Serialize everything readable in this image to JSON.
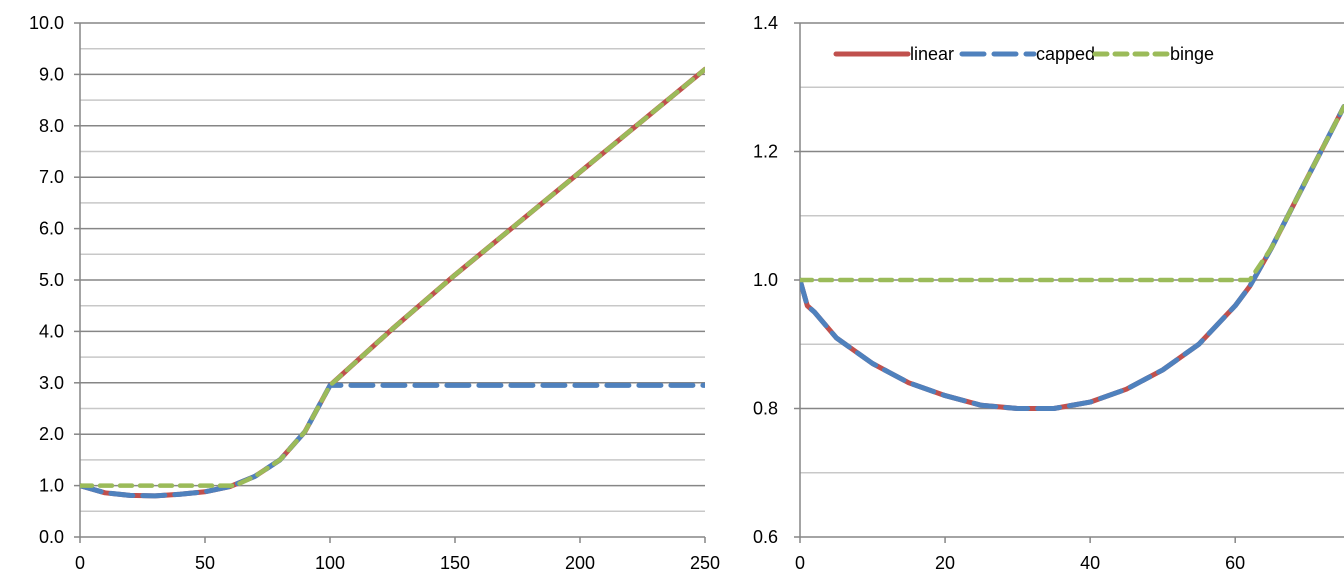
{
  "chart_data": [
    {
      "type": "line",
      "xlim": [
        0,
        250
      ],
      "ylim": [
        0,
        10
      ],
      "x_ticks": [
        "0",
        "50",
        "100",
        "150",
        "200",
        "250"
      ],
      "y_ticks": [
        "0.0",
        "1.0",
        "2.0",
        "3.0",
        "4.0",
        "5.0",
        "6.0",
        "7.0",
        "8.0",
        "9.0",
        "10.0"
      ],
      "grid": "horizontal major and minor",
      "legend": "none",
      "series": [
        {
          "name": "linear",
          "color": "#C0504D",
          "style": "solid",
          "x": [
            0,
            10,
            20,
            30,
            40,
            50,
            60,
            70,
            80,
            90,
            100,
            125,
            150,
            175,
            200,
            225,
            250
          ],
          "y": [
            1.0,
            0.86,
            0.81,
            0.8,
            0.83,
            0.88,
            0.98,
            1.18,
            1.5,
            2.05,
            2.95,
            4.05,
            5.1,
            6.1,
            7.1,
            8.1,
            9.1
          ]
        },
        {
          "name": "capped",
          "color": "#4F81BD",
          "style": "dashed",
          "x": [
            0,
            10,
            20,
            30,
            40,
            50,
            60,
            70,
            80,
            90,
            100,
            125,
            150,
            175,
            200,
            225,
            250
          ],
          "y": [
            1.0,
            0.86,
            0.81,
            0.8,
            0.83,
            0.88,
            0.98,
            1.18,
            1.5,
            2.05,
            2.95,
            2.95,
            2.95,
            2.95,
            2.95,
            2.95,
            2.95
          ]
        },
        {
          "name": "binge",
          "color": "#9BBB59",
          "style": "dashed",
          "x": [
            0,
            10,
            20,
            30,
            40,
            50,
            60,
            62,
            70,
            80,
            90,
            100,
            125,
            150,
            175,
            200,
            225,
            250
          ],
          "y": [
            1.0,
            1.0,
            1.0,
            1.0,
            1.0,
            1.0,
            1.0,
            1.0,
            1.18,
            1.5,
            2.05,
            2.95,
            4.05,
            5.1,
            6.1,
            7.1,
            8.1,
            9.1
          ]
        }
      ]
    },
    {
      "type": "line",
      "xlim": [
        0,
        75
      ],
      "ylim": [
        0.6,
        1.4
      ],
      "x_ticks": [
        "0",
        "20",
        "40",
        "60"
      ],
      "y_ticks": [
        "0.6",
        "0.8",
        "1.0",
        "1.2",
        "1.4"
      ],
      "grid": "horizontal major and minor",
      "legend": "top",
      "series": [
        {
          "name": "linear",
          "color": "#C0504D",
          "style": "solid",
          "x": [
            0,
            1,
            2,
            5,
            10,
            15,
            20,
            25,
            30,
            35,
            40,
            45,
            50,
            55,
            60,
            62,
            65,
            70,
            75
          ],
          "y": [
            1.0,
            0.96,
            0.95,
            0.91,
            0.87,
            0.84,
            0.82,
            0.805,
            0.8,
            0.8,
            0.81,
            0.83,
            0.86,
            0.9,
            0.96,
            0.99,
            1.05,
            1.16,
            1.27
          ]
        },
        {
          "name": "capped",
          "color": "#4F81BD",
          "style": "dashed",
          "x": [
            0,
            1,
            2,
            5,
            10,
            15,
            20,
            25,
            30,
            35,
            40,
            45,
            50,
            55,
            60,
            62,
            65,
            70,
            75
          ],
          "y": [
            1.0,
            0.96,
            0.95,
            0.91,
            0.87,
            0.84,
            0.82,
            0.805,
            0.8,
            0.8,
            0.81,
            0.83,
            0.86,
            0.9,
            0.96,
            0.99,
            1.05,
            1.16,
            1.27
          ]
        },
        {
          "name": "binge",
          "color": "#9BBB59",
          "style": "dashed",
          "x": [
            0,
            10,
            20,
            30,
            40,
            50,
            60,
            62,
            65,
            70,
            75
          ],
          "y": [
            1.0,
            1.0,
            1.0,
            1.0,
            1.0,
            1.0,
            1.0,
            1.0,
            1.05,
            1.16,
            1.27
          ]
        }
      ]
    }
  ]
}
